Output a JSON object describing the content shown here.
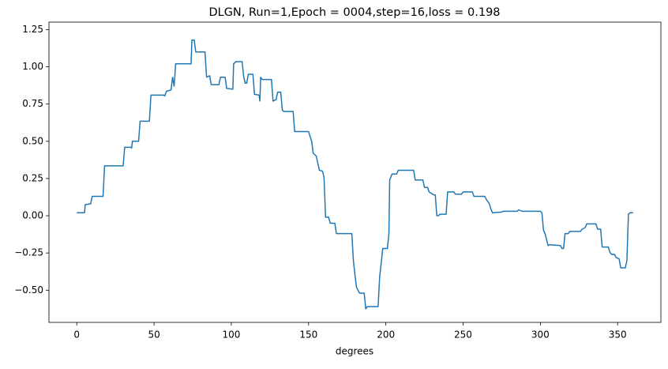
{
  "chart_data": {
    "type": "line",
    "title": "DLGN, Run=1,Epoch = 0004,step=16,loss = 0.198",
    "x_label": "degrees",
    "x": [
      0,
      5,
      5.5,
      9,
      10,
      17,
      18,
      30,
      31,
      35,
      35.5,
      36,
      40,
      41,
      47,
      48,
      56,
      57,
      58,
      61,
      62,
      63,
      64,
      74,
      74.5,
      76,
      77,
      83,
      84,
      86,
      87,
      92,
      93,
      96,
      97,
      101,
      101.5,
      103,
      107,
      108,
      109,
      110,
      111,
      114,
      115,
      118,
      118.5,
      119,
      120,
      126,
      127,
      129,
      130,
      132,
      133,
      134,
      140,
      141,
      150,
      152,
      153,
      155,
      157,
      159,
      160,
      161,
      163,
      164,
      167,
      168,
      178,
      179,
      180,
      181,
      182,
      183,
      186,
      187,
      188,
      195,
      196,
      197,
      198,
      201,
      202,
      202.5,
      204,
      207,
      208,
      218,
      219,
      224,
      225,
      227,
      228,
      231,
      232,
      233,
      234,
      235,
      239,
      240,
      244,
      245,
      249,
      250,
      256,
      257,
      264,
      265,
      267,
      268,
      269,
      275,
      276,
      285,
      286,
      288,
      300,
      301,
      302,
      303,
      304,
      305,
      306,
      313,
      314,
      315,
      316,
      318,
      319,
      326,
      327,
      329,
      330,
      336,
      337,
      339,
      340,
      344,
      345,
      346,
      348,
      349,
      351,
      352,
      355,
      356,
      357,
      358,
      360
    ],
    "series": [
      {
        "color": "#1f77b4",
        "values": [
          0.02,
          0.02,
          0.075,
          0.08,
          0.13,
          0.13,
          0.335,
          0.335,
          0.46,
          0.46,
          0.455,
          0.5,
          0.5,
          0.635,
          0.635,
          0.81,
          0.81,
          0.805,
          0.835,
          0.845,
          0.93,
          0.87,
          1.02,
          1.02,
          1.18,
          1.18,
          1.1,
          1.1,
          0.93,
          0.94,
          0.88,
          0.88,
          0.93,
          0.93,
          0.855,
          0.85,
          1.02,
          1.035,
          1.035,
          0.935,
          0.89,
          0.89,
          0.95,
          0.95,
          0.815,
          0.81,
          0.77,
          0.93,
          0.915,
          0.915,
          0.77,
          0.78,
          0.83,
          0.83,
          0.71,
          0.7,
          0.7,
          0.565,
          0.565,
          0.5,
          0.42,
          0.4,
          0.305,
          0.3,
          0.26,
          -0.01,
          -0.01,
          -0.05,
          -0.05,
          -0.12,
          -0.12,
          -0.3,
          -0.395,
          -0.48,
          -0.5,
          -0.52,
          -0.52,
          -0.625,
          -0.61,
          -0.61,
          -0.41,
          -0.32,
          -0.22,
          -0.22,
          -0.12,
          0.24,
          0.28,
          0.28,
          0.305,
          0.305,
          0.24,
          0.24,
          0.19,
          0.19,
          0.16,
          0.14,
          0.14,
          0.0,
          0.0,
          0.01,
          0.01,
          0.16,
          0.16,
          0.145,
          0.145,
          0.16,
          0.16,
          0.13,
          0.13,
          0.11,
          0.08,
          0.045,
          0.02,
          0.025,
          0.03,
          0.03,
          0.04,
          0.03,
          0.03,
          0.02,
          -0.095,
          -0.12,
          -0.16,
          -0.2,
          -0.195,
          -0.2,
          -0.22,
          -0.22,
          -0.12,
          -0.12,
          -0.105,
          -0.105,
          -0.09,
          -0.08,
          -0.055,
          -0.055,
          -0.09,
          -0.09,
          -0.21,
          -0.21,
          -0.245,
          -0.26,
          -0.26,
          -0.28,
          -0.29,
          -0.35,
          -0.35,
          -0.3,
          0.01,
          0.02,
          0.02
        ]
      }
    ],
    "xlim": [
      -18,
      378
    ],
    "ylim": [
      -0.716,
      1.3
    ],
    "xticks": [
      0,
      50,
      100,
      150,
      200,
      250,
      300,
      350
    ],
    "yticks": [
      {
        "value": -0.5,
        "label": "−0.50"
      },
      {
        "value": -0.25,
        "label": "−0.25"
      },
      {
        "value": 0,
        "label": "0.00"
      },
      0.25,
      {
        "value": 0.5,
        "label": "0.50"
      },
      0.75,
      {
        "value": 1,
        "label": "1.00"
      },
      1.25
    ]
  }
}
